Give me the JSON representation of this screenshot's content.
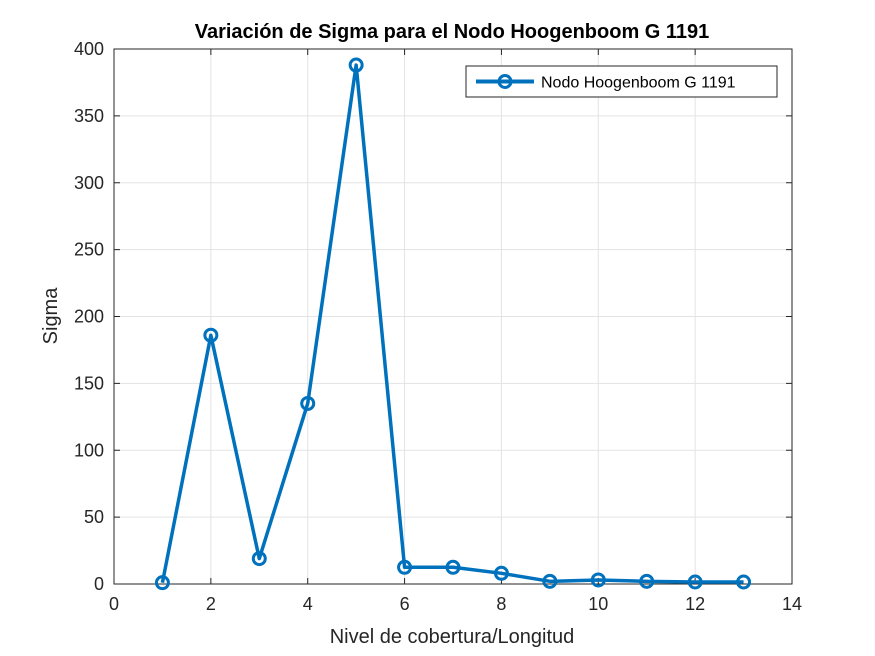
{
  "chart_data": {
    "type": "line",
    "title": "Variación de Sigma para el Nodo Hoogenboom G 1191",
    "xlabel": "Nivel de cobertura/Longitud",
    "ylabel": "Sigma",
    "xlim": [
      0,
      14
    ],
    "ylim": [
      0,
      400
    ],
    "xticks": [
      0,
      2,
      4,
      6,
      8,
      10,
      12,
      14
    ],
    "yticks": [
      0,
      50,
      100,
      150,
      200,
      250,
      300,
      350,
      400
    ],
    "xtick_labels": [
      "0",
      "2",
      "4",
      "6",
      "8",
      "10",
      "12",
      "14"
    ],
    "ytick_labels": [
      "0",
      "50",
      "100",
      "150",
      "200",
      "250",
      "300",
      "350",
      "400"
    ],
    "grid": true,
    "legend_position": "top-right",
    "series": [
      {
        "name": "Nodo Hoogenboom G 1191",
        "color": "#0072bd",
        "marker": "circle",
        "x": [
          1,
          2,
          3,
          4,
          5,
          6,
          7,
          8,
          9,
          10,
          11,
          12,
          13
        ],
        "y": [
          1,
          186,
          19,
          135,
          388,
          12.5,
          12.5,
          8,
          2,
          3,
          2,
          1.5,
          1.5
        ]
      }
    ]
  }
}
